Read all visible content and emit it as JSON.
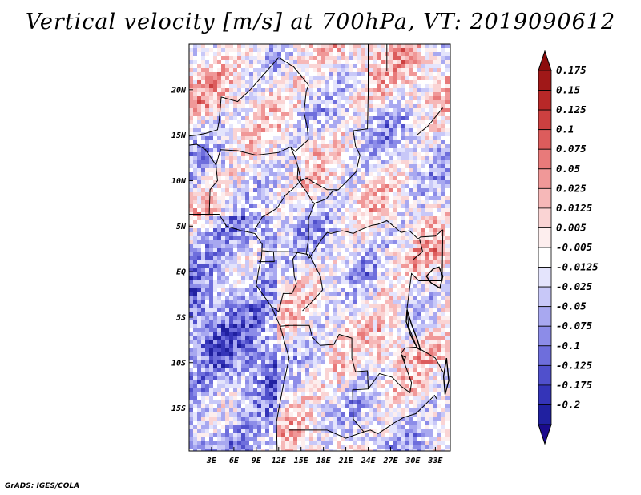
{
  "title": "Vertical velocity [m/s] at 700hPa, VT: 2019090612",
  "footer": "GrADS: IGES/COLA",
  "map": {
    "lat_range": [
      -19.7,
      25
    ],
    "lon_range": [
      0,
      35
    ],
    "lat_ticks": [
      {
        "value": 20,
        "label": "20N"
      },
      {
        "value": 15,
        "label": "15N"
      },
      {
        "value": 10,
        "label": "10N"
      },
      {
        "value": 5,
        "label": "5N"
      },
      {
        "value": 0,
        "label": "EQ"
      },
      {
        "value": -5,
        "label": "5S"
      },
      {
        "value": -10,
        "label": "10S"
      },
      {
        "value": -15,
        "label": "15S"
      }
    ],
    "lon_ticks": [
      {
        "value": 3,
        "label": "3E"
      },
      {
        "value": 6,
        "label": "6E"
      },
      {
        "value": 9,
        "label": "9E"
      },
      {
        "value": 12,
        "label": "12E"
      },
      {
        "value": 15,
        "label": "15E"
      },
      {
        "value": 18,
        "label": "18E"
      },
      {
        "value": 21,
        "label": "21E"
      },
      {
        "value": 24,
        "label": "24E"
      },
      {
        "value": 27,
        "label": "27E"
      },
      {
        "value": 30,
        "label": "30E"
      },
      {
        "value": 33,
        "label": "33E"
      }
    ]
  },
  "colorbar": {
    "levels": [
      {
        "label": "0.175",
        "color": "#a01818"
      },
      {
        "label": "0.15",
        "color": "#b82828"
      },
      {
        "label": "0.125",
        "color": "#cc4040"
      },
      {
        "label": "0.1",
        "color": "#dc5c5c"
      },
      {
        "label": "0.075",
        "color": "#e87a7a"
      },
      {
        "label": "0.05",
        "color": "#f09898"
      },
      {
        "label": "0.025",
        "color": "#f6b8b8"
      },
      {
        "label": "0.0125",
        "color": "#fad4d4"
      },
      {
        "label": "0.005",
        "color": "#fdeeee"
      },
      {
        "label": "-0.005",
        "color": "#ffffff"
      },
      {
        "label": "-0.0125",
        "color": "#e4e4fc"
      },
      {
        "label": "-0.025",
        "color": "#c8c8f8"
      },
      {
        "label": "-0.05",
        "color": "#a8a8f0"
      },
      {
        "label": "-0.075",
        "color": "#8c8ce8"
      },
      {
        "label": "-0.1",
        "color": "#6e6edc"
      },
      {
        "label": "-0.125",
        "color": "#5050cc"
      },
      {
        "label": "-0.175",
        "color": "#3434b8"
      },
      {
        "label": "-0.2",
        "color": "#2020a0"
      }
    ],
    "top_arrow_color": "#8c0c0c",
    "bottom_arrow_color": "#1a0a8c"
  }
}
